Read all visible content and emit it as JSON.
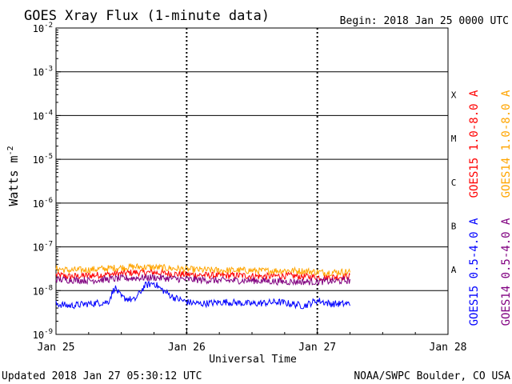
{
  "title": "GOES Xray Flux (1-minute data)",
  "begin": "Begin:  2018 Jan 25 0000 UTC",
  "updated": "Updated 2018 Jan 27 05:30:12 UTC",
  "credit": "NOAA/SWPC Boulder, CO USA",
  "chart_data": {
    "type": "line",
    "title": "GOES Xray Flux (1-minute data)",
    "xlabel": "Universal Time",
    "ylabel_base": "Watts m",
    "ylabel_exp": "-2",
    "yscale": "log",
    "ylim": [
      1e-09,
      0.01
    ],
    "y_ticks": [
      {
        "base": "10",
        "exp": "-2",
        "value": 0.01
      },
      {
        "base": "10",
        "exp": "-3",
        "value": 0.001
      },
      {
        "base": "10",
        "exp": "-4",
        "value": 0.0001
      },
      {
        "base": "10",
        "exp": "-5",
        "value": 1e-05
      },
      {
        "base": "10",
        "exp": "-6",
        "value": 1e-06
      },
      {
        "base": "10",
        "exp": "-7",
        "value": 1e-07
      },
      {
        "base": "10",
        "exp": "-8",
        "value": 1e-08
      },
      {
        "base": "10",
        "exp": "-9",
        "value": 1e-09
      }
    ],
    "x_ticks": [
      "Jan 25",
      "Jan 26",
      "Jan 27",
      "Jan 28"
    ],
    "xlim_days": [
      0,
      3
    ],
    "flare_classes": [
      {
        "label": "X",
        "value": 0.0003
      },
      {
        "label": "M",
        "value": 3e-05
      },
      {
        "label": "C",
        "value": 3e-06
      },
      {
        "label": "B",
        "value": 3e-07
      },
      {
        "label": "A",
        "value": 3e-08
      }
    ],
    "series": [
      {
        "name": "GOES15 1.0-8.0 A",
        "color": "#ff0000",
        "x_days": [
          0,
          0.1,
          0.25,
          0.45,
          0.6,
          0.75,
          0.9,
          1.05,
          1.25,
          1.45,
          1.6,
          1.75,
          1.9,
          2.05,
          2.25
        ],
        "values": [
          2.3e-08,
          2.1e-08,
          2.2e-08,
          2.4e-08,
          2.6e-08,
          2.6e-08,
          2.4e-08,
          2.3e-08,
          2.2e-08,
          2.2e-08,
          2.1e-08,
          2.2e-08,
          2.1e-08,
          2e-08,
          2.1e-08
        ]
      },
      {
        "name": "GOES14 1.0-8.0 A",
        "color": "#ffa500",
        "x_days": [
          0,
          0.1,
          0.25,
          0.45,
          0.6,
          0.75,
          0.9,
          1.05,
          1.25,
          1.45,
          1.6,
          1.75,
          1.9,
          2.05,
          2.25
        ],
        "values": [
          3.2e-08,
          2.9e-08,
          3e-08,
          3.3e-08,
          3.5e-08,
          3.4e-08,
          3.2e-08,
          3e-08,
          2.9e-08,
          2.9e-08,
          2.8e-08,
          2.9e-08,
          2.8e-08,
          2.6e-08,
          2.7e-08
        ]
      },
      {
        "name": "GOES15 0.5-4.0 A",
        "color": "#0000ff",
        "x_days": [
          0,
          0.1,
          0.25,
          0.4,
          0.45,
          0.5,
          0.6,
          0.68,
          0.75,
          0.8,
          0.9,
          1.0,
          1.1,
          1.3,
          1.5,
          1.7,
          1.9,
          2.0,
          2.1,
          2.25
        ],
        "values": [
          5e-09,
          4.5e-09,
          5e-09,
          5.5e-09,
          1.2e-08,
          7e-09,
          6e-09,
          1.3e-08,
          1.5e-08,
          1.1e-08,
          7e-09,
          5.5e-09,
          5e-09,
          5.5e-09,
          5e-09,
          5.5e-09,
          4.5e-09,
          6e-09,
          5e-09,
          5e-09
        ]
      },
      {
        "name": "GOES14 0.5-4.0 A",
        "color": "#800080",
        "x_days": [
          0,
          0.25,
          0.5,
          0.75,
          1.0,
          1.25,
          1.5,
          1.75,
          2.0,
          2.25
        ],
        "values": [
          1.8e-08,
          1.7e-08,
          1.9e-08,
          2e-08,
          1.8e-08,
          1.7e-08,
          1.7e-08,
          1.6e-08,
          1.6e-08,
          1.7e-08
        ]
      }
    ],
    "legend_placement": "right-vertical"
  }
}
